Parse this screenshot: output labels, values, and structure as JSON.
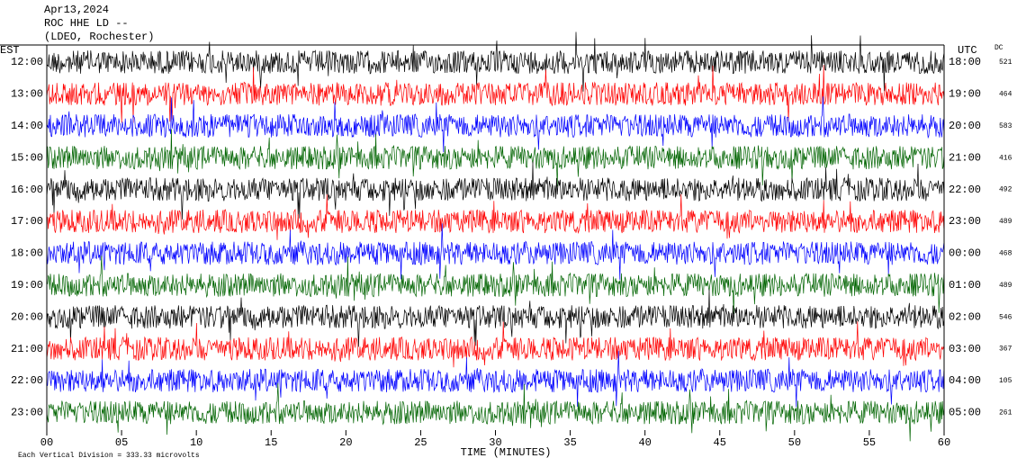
{
  "header": {
    "date": "Apr13,2024",
    "station": "ROC HHE LD --",
    "network": "(LDEO, Rochester)"
  },
  "left_axis": {
    "title": "EST",
    "labels": [
      "12:00",
      "13:00",
      "14:00",
      "15:00",
      "16:00",
      "17:00",
      "18:00",
      "19:00",
      "20:00",
      "21:00",
      "22:00",
      "23:00"
    ]
  },
  "right_axis": {
    "title": "UTC",
    "labels": [
      "18:00",
      "19:00",
      "20:00",
      "21:00",
      "22:00",
      "23:00",
      "00:00",
      "01:00",
      "02:00",
      "03:00",
      "04:00",
      "05:00"
    ]
  },
  "dc": {
    "title": "DC",
    "values": [
      521,
      464,
      583,
      416,
      492,
      489,
      468,
      489,
      546,
      367,
      105,
      261
    ]
  },
  "x_axis": {
    "title": "TIME (MINUTES)",
    "ticks": [
      "00",
      "05",
      "10",
      "15",
      "20",
      "25",
      "30",
      "35",
      "40",
      "45",
      "50",
      "55",
      "60"
    ]
  },
  "footer": "Each Vertical Division =  333.33 microvolts"
}
